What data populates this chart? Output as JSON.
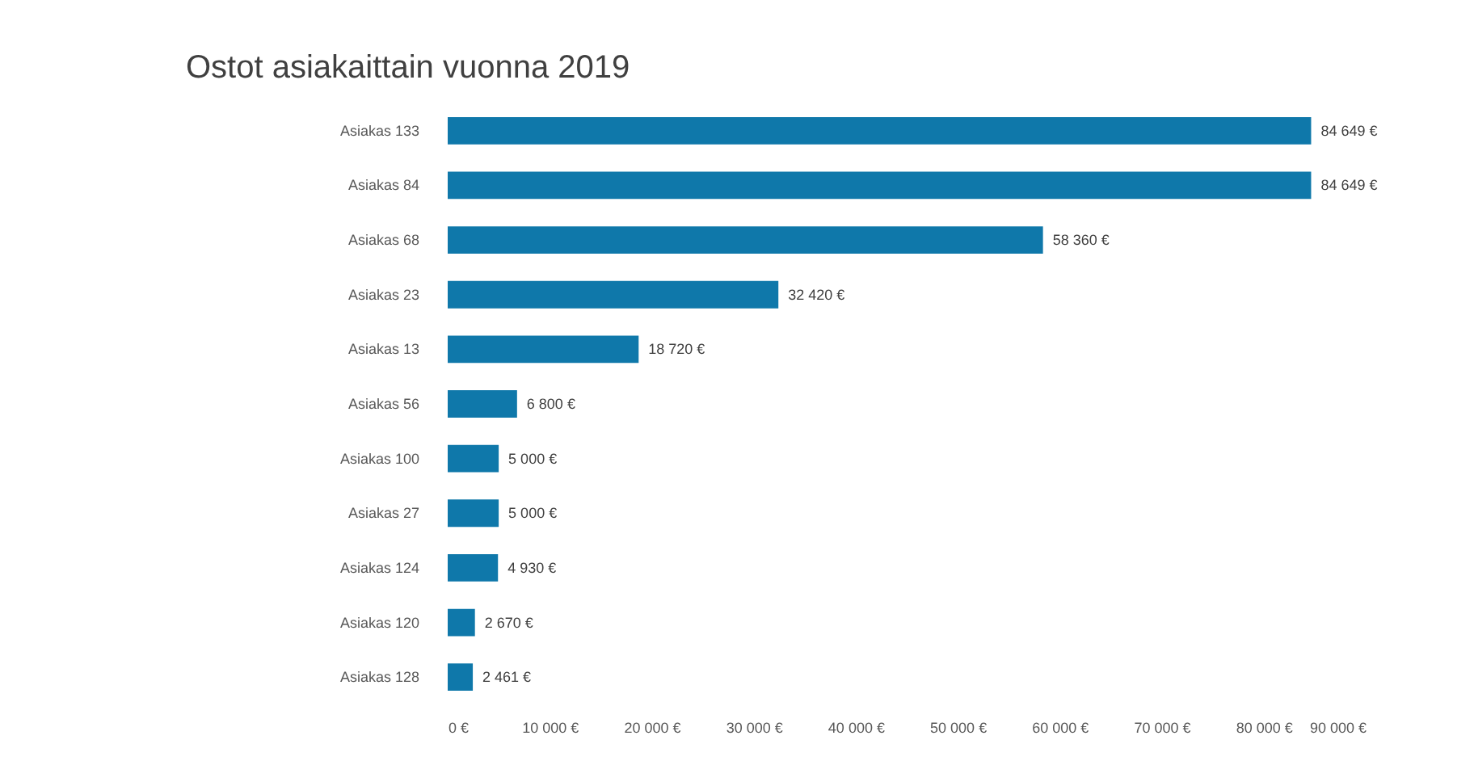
{
  "chart_data": {
    "type": "bar",
    "orientation": "horizontal",
    "title": "Ostot asiakaittain vuonna 2019",
    "categories": [
      "Asiakas 133",
      "Asiakas 84",
      "Asiakas 68",
      "Asiakas 23",
      "Asiakas 13",
      "Asiakas 56",
      "Asiakas 100",
      "Asiakas 27",
      "Asiakas 124",
      "Asiakas 120",
      "Asiakas 128"
    ],
    "values": [
      84649,
      84649,
      58360,
      32420,
      18720,
      6800,
      5000,
      5000,
      4930,
      2670,
      2461
    ],
    "value_labels": [
      "84 649 €",
      "84 649 €",
      "58 360 €",
      "32 420 €",
      "18 720 €",
      "6 800 €",
      "5 000 €",
      "5 000 €",
      "4 930 €",
      "2 670 €",
      "2 461 €"
    ],
    "color": "#0f78aa",
    "xlim": [
      0,
      90000
    ],
    "xticks": [
      {
        "value": 0,
        "label": "0 €"
      },
      {
        "value": 10000,
        "label": "10 000 €"
      },
      {
        "value": 20000,
        "label": "20 000 €"
      },
      {
        "value": 30000,
        "label": "30 000 €"
      },
      {
        "value": 40000,
        "label": "40 000 €"
      },
      {
        "value": 50000,
        "label": "50 000 €"
      },
      {
        "value": 60000,
        "label": "60 000 €"
      },
      {
        "value": 70000,
        "label": "70 000 €"
      },
      {
        "value": 80000,
        "label": "80 000 €"
      },
      {
        "value": 90000,
        "label": "90 000 €"
      }
    ],
    "grid": false
  }
}
